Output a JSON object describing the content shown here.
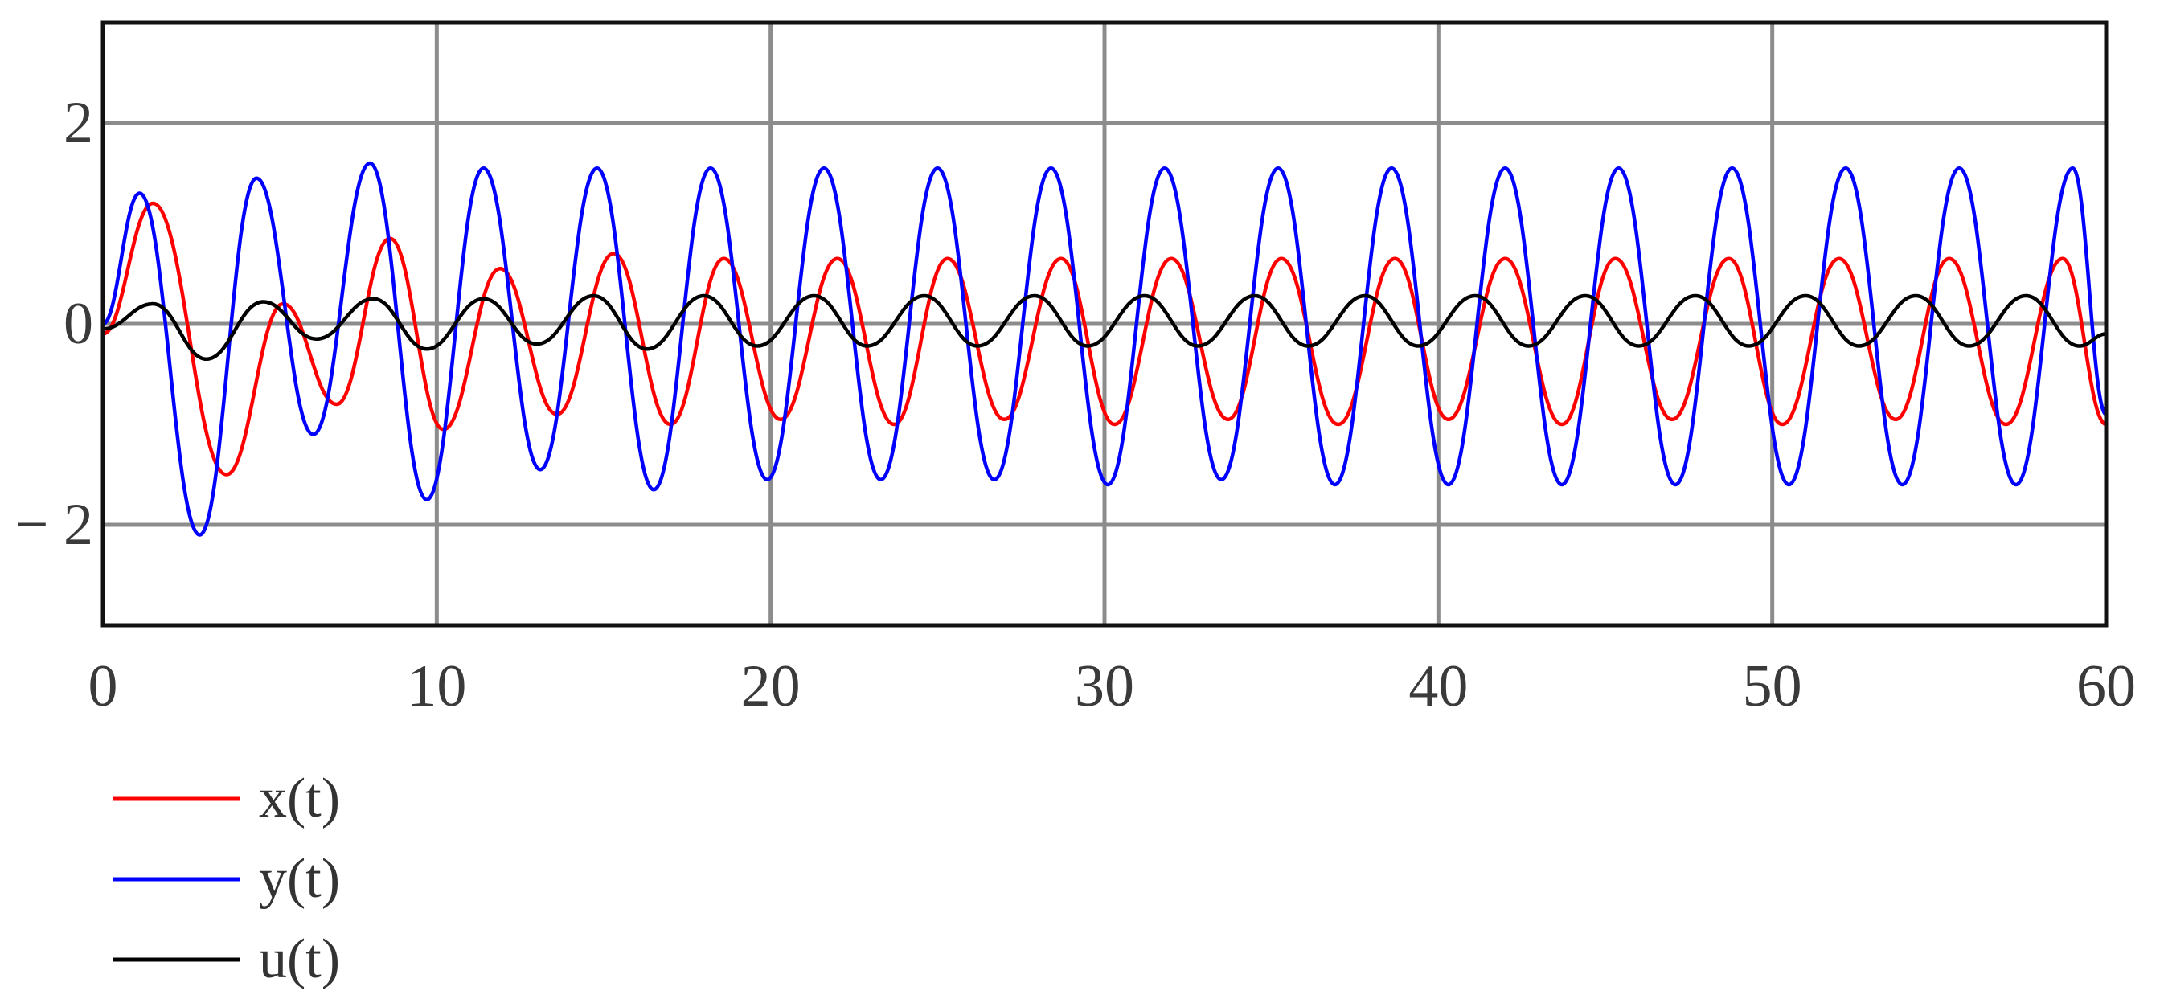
{
  "chart_data": {
    "type": "line",
    "title": "",
    "xlabel": "",
    "ylabel": "",
    "xlim": [
      0,
      60
    ],
    "ylim": [
      -3,
      3
    ],
    "x_ticks": [
      0,
      10,
      20,
      30,
      40,
      50,
      60
    ],
    "x_tick_labels": [
      "0",
      "10",
      "20",
      "30",
      "40",
      "50",
      "60"
    ],
    "y_ticks": [
      2,
      0,
      -2
    ],
    "y_tick_labels": [
      "2",
      "0",
      "− 2"
    ],
    "grid": true,
    "legend": {
      "placement": "bottom-left"
    },
    "series": [
      {
        "name": "x(t)",
        "color": "#ff0000",
        "x": [
          0,
          1.5,
          3.7,
          5.4,
          7,
          8.6,
          10.2,
          11.9,
          13.6,
          15.3,
          17,
          18.6,
          20.3,
          22,
          23.7,
          25.3,
          27,
          28.7,
          30.3,
          32,
          33.7,
          35.3,
          37,
          38.7,
          40.3,
          42,
          43.7,
          45.3,
          47,
          48.7,
          50.3,
          52,
          53.7,
          55.3,
          57,
          58.7,
          60
        ],
        "y": [
          -0.1,
          1.2,
          -1.5,
          0.2,
          -0.8,
          0.85,
          -1.05,
          0.55,
          -0.9,
          0.7,
          -1.0,
          0.65,
          -0.95,
          0.65,
          -1.0,
          0.65,
          -0.95,
          0.65,
          -1.0,
          0.65,
          -0.95,
          0.65,
          -1.0,
          0.65,
          -0.95,
          0.65,
          -1.0,
          0.65,
          -0.95,
          0.65,
          -1.0,
          0.65,
          -0.95,
          0.65,
          -1.0,
          0.65,
          -1.0
        ]
      },
      {
        "name": "y(t)",
        "color": "#0000ff",
        "x": [
          0,
          1.1,
          2.9,
          4.6,
          6.3,
          8.0,
          9.7,
          11.4,
          13.1,
          14.8,
          16.5,
          18.2,
          19.9,
          21.6,
          23.3,
          25.0,
          26.7,
          28.4,
          30.1,
          31.8,
          33.5,
          35.2,
          36.9,
          38.6,
          40.3,
          42.0,
          43.7,
          45.4,
          47.1,
          48.8,
          50.5,
          52.2,
          53.9,
          55.6,
          57.3,
          59.0,
          60
        ],
        "y": [
          0,
          1.3,
          -2.1,
          1.45,
          -1.1,
          1.6,
          -1.75,
          1.55,
          -1.45,
          1.55,
          -1.65,
          1.55,
          -1.55,
          1.55,
          -1.55,
          1.55,
          -1.55,
          1.55,
          -1.6,
          1.55,
          -1.55,
          1.55,
          -1.6,
          1.55,
          -1.6,
          1.55,
          -1.6,
          1.55,
          -1.6,
          1.55,
          -1.6,
          1.55,
          -1.6,
          1.55,
          -1.6,
          1.55,
          -0.9
        ]
      },
      {
        "name": "u(t)",
        "color": "#000000",
        "x": [
          0,
          1.5,
          3.1,
          4.8,
          6.4,
          8.1,
          9.7,
          11.4,
          13.0,
          14.7,
          16.3,
          18.0,
          19.6,
          21.3,
          22.9,
          24.6,
          26.2,
          27.9,
          29.5,
          31.2,
          32.8,
          34.5,
          36.1,
          37.8,
          39.4,
          41.1,
          42.7,
          44.4,
          46.0,
          47.7,
          49.3,
          51.0,
          52.6,
          54.3,
          55.9,
          57.6,
          59.2,
          60
        ],
        "y": [
          -0.05,
          0.2,
          -0.35,
          0.22,
          -0.15,
          0.25,
          -0.25,
          0.25,
          -0.2,
          0.28,
          -0.25,
          0.28,
          -0.22,
          0.28,
          -0.22,
          0.28,
          -0.22,
          0.28,
          -0.22,
          0.28,
          -0.22,
          0.28,
          -0.22,
          0.28,
          -0.22,
          0.28,
          -0.22,
          0.28,
          -0.22,
          0.28,
          -0.22,
          0.28,
          -0.22,
          0.28,
          -0.22,
          0.28,
          -0.22,
          -0.1
        ]
      }
    ]
  }
}
